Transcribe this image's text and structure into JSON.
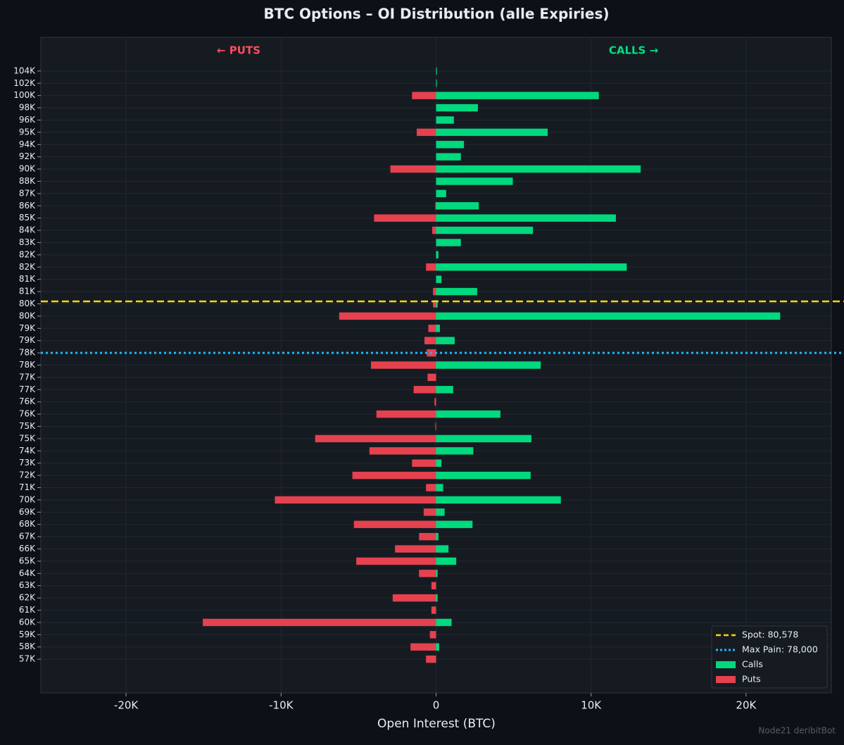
{
  "chart_data": {
    "type": "diverging-bar",
    "title": "BTC Options – OI Distribution (alle Expiries)",
    "left_label": "← PUTS",
    "right_label": "CALLS →",
    "xlabel": "Open Interest (BTC)",
    "watermark": "Node21 deribitBot",
    "categories": [
      "104K",
      "102K",
      "100K",
      "98K",
      "96K",
      "95K",
      "94K",
      "92K",
      "90K",
      "88K",
      "87K",
      "86K",
      "85K",
      "84K",
      "83K",
      "82K",
      "82K",
      "81K",
      "81K",
      "80K",
      "80K",
      "79K",
      "79K",
      "78K",
      "78K",
      "77K",
      "77K",
      "76K",
      "76K",
      "75K",
      "75K",
      "74K",
      "73K",
      "72K",
      "71K",
      "70K",
      "69K",
      "68K",
      "67K",
      "66K",
      "65K",
      "64K",
      "63K",
      "62K",
      "61K",
      "60K",
      "59K",
      "58K",
      "57K"
    ],
    "series": [
      {
        "name": "Calls",
        "color": "#00d97e",
        "values": [
          50,
          50,
          10500,
          2700,
          1150,
          7200,
          1800,
          1600,
          13200,
          4950,
          650,
          2750,
          11600,
          6250,
          1600,
          150,
          12300,
          350,
          2650,
          100,
          22200,
          250,
          1200,
          0,
          6750,
          0,
          1100,
          0,
          4150,
          0,
          6150,
          2400,
          350,
          6100,
          450,
          8050,
          550,
          2350,
          150,
          800,
          1300,
          100,
          0,
          100,
          0,
          1000,
          0,
          200,
          0
        ]
      },
      {
        "name": "Puts",
        "color": "#e5414f",
        "values": [
          0,
          0,
          -1550,
          0,
          0,
          -1250,
          0,
          0,
          -2950,
          0,
          0,
          -50,
          -4000,
          -250,
          0,
          0,
          -650,
          0,
          -200,
          -200,
          -6250,
          -500,
          -750,
          -600,
          -4200,
          -550,
          -1450,
          -100,
          -3850,
          -50,
          -7800,
          -4300,
          -1550,
          -5400,
          -650,
          -10400,
          -800,
          -5300,
          -1100,
          -2650,
          -5150,
          -1100,
          -300,
          -2800,
          -300,
          -15050,
          -400,
          -1650,
          -650
        ]
      }
    ],
    "reference_lines": [
      {
        "name": "Spot: 80,578",
        "value": 80578,
        "color": "#f5d90a",
        "style": "dashed"
      },
      {
        "name": "Max Pain: 78,000",
        "value": 78000,
        "color": "#1fb6ff",
        "style": "dotted"
      }
    ],
    "xlim": [
      -25500,
      25500
    ],
    "xticks": [
      {
        "value": -20000,
        "label": "-20K"
      },
      {
        "value": -10000,
        "label": "-10K"
      },
      0,
      {
        "value": 10000,
        "label": "10K"
      },
      {
        "value": 20000,
        "label": "20K"
      }
    ],
    "grid": true,
    "legend": "lower right"
  }
}
